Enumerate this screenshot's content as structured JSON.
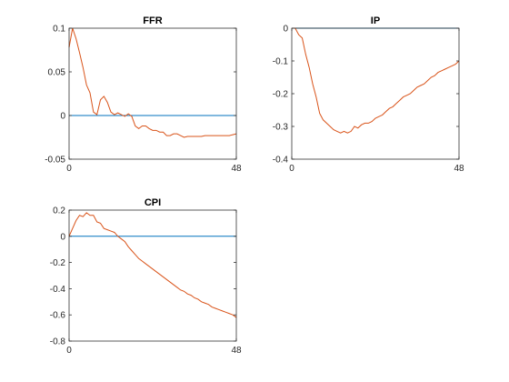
{
  "colors": {
    "response": "#d95319",
    "zero": "#0072bd",
    "axis": "#262626"
  },
  "chart_data": [
    {
      "type": "line",
      "title": "FFR",
      "xlim": [
        0,
        48
      ],
      "ylim": [
        -0.05,
        0.1
      ],
      "xticks": [
        0,
        48
      ],
      "xtick_labels": [
        "0",
        "48"
      ],
      "yticks": [
        -0.05,
        0,
        0.05,
        0.1
      ],
      "ytick_labels": [
        "-0.05",
        "0",
        "0.05",
        "0.1"
      ],
      "zero_line": 0,
      "x": [
        0,
        1,
        2,
        3,
        4,
        5,
        6,
        7,
        8,
        9,
        10,
        11,
        12,
        13,
        14,
        15,
        16,
        17,
        18,
        19,
        20,
        21,
        22,
        23,
        24,
        25,
        26,
        27,
        28,
        29,
        30,
        31,
        32,
        33,
        34,
        35,
        36,
        37,
        38,
        39,
        40,
        41,
        42,
        43,
        44,
        45,
        46,
        47,
        48
      ],
      "y": [
        0.078,
        0.1,
        0.088,
        0.072,
        0.055,
        0.035,
        0.026,
        0.004,
        0.001,
        0.018,
        0.022,
        0.015,
        0.004,
        0.001,
        0.003,
        0.001,
        -0.001,
        0.002,
        -0.001,
        -0.012,
        -0.015,
        -0.012,
        -0.012,
        -0.015,
        -0.017,
        -0.017,
        -0.019,
        -0.019,
        -0.023,
        -0.023,
        -0.021,
        -0.021,
        -0.023,
        -0.025,
        -0.024,
        -0.024,
        -0.024,
        -0.024,
        -0.024,
        -0.023,
        -0.023,
        -0.023,
        -0.023,
        -0.023,
        -0.023,
        -0.023,
        -0.023,
        -0.022,
        -0.021
      ]
    },
    {
      "type": "line",
      "title": "IP",
      "xlim": [
        0,
        48
      ],
      "ylim": [
        -0.4,
        0
      ],
      "xticks": [
        0,
        48
      ],
      "xtick_labels": [
        "0",
        "48"
      ],
      "yticks": [
        -0.4,
        -0.3,
        -0.2,
        -0.1,
        0
      ],
      "ytick_labels": [
        "-0.4",
        "-0.3",
        "-0.2",
        "-0.1",
        "0"
      ],
      "zero_line": 0,
      "x": [
        0,
        1,
        2,
        3,
        4,
        5,
        6,
        7,
        8,
        9,
        10,
        11,
        12,
        13,
        14,
        15,
        16,
        17,
        18,
        19,
        20,
        21,
        22,
        23,
        24,
        25,
        26,
        27,
        28,
        29,
        30,
        31,
        32,
        33,
        34,
        35,
        36,
        37,
        38,
        39,
        40,
        41,
        42,
        43,
        44,
        45,
        46,
        47,
        48
      ],
      "y": [
        0,
        0,
        -0.02,
        -0.03,
        -0.08,
        -0.12,
        -0.17,
        -0.21,
        -0.26,
        -0.28,
        -0.29,
        -0.3,
        -0.31,
        -0.315,
        -0.32,
        -0.315,
        -0.32,
        -0.315,
        -0.3,
        -0.305,
        -0.295,
        -0.29,
        -0.29,
        -0.285,
        -0.275,
        -0.27,
        -0.265,
        -0.255,
        -0.245,
        -0.24,
        -0.23,
        -0.22,
        -0.21,
        -0.205,
        -0.2,
        -0.19,
        -0.18,
        -0.175,
        -0.17,
        -0.16,
        -0.15,
        -0.145,
        -0.135,
        -0.13,
        -0.125,
        -0.12,
        -0.115,
        -0.11,
        -0.1
      ]
    },
    {
      "type": "line",
      "title": "CPI",
      "xlim": [
        0,
        48
      ],
      "ylim": [
        -0.8,
        0.2
      ],
      "xticks": [
        0,
        48
      ],
      "xtick_labels": [
        "0",
        "48"
      ],
      "yticks": [
        -0.8,
        -0.6,
        -0.4,
        -0.2,
        0,
        0.2
      ],
      "ytick_labels": [
        "-0.8",
        "-0.6",
        "-0.4",
        "-0.2",
        "0",
        "0.2"
      ],
      "zero_line": 0,
      "x": [
        0,
        1,
        2,
        3,
        4,
        5,
        6,
        7,
        8,
        9,
        10,
        11,
        12,
        13,
        14,
        15,
        16,
        17,
        18,
        19,
        20,
        21,
        22,
        23,
        24,
        25,
        26,
        27,
        28,
        29,
        30,
        31,
        32,
        33,
        34,
        35,
        36,
        37,
        38,
        39,
        40,
        41,
        42,
        43,
        44,
        45,
        46,
        47,
        48
      ],
      "y": [
        0,
        0.06,
        0.12,
        0.16,
        0.15,
        0.18,
        0.16,
        0.16,
        0.11,
        0.1,
        0.06,
        0.05,
        0.04,
        0.03,
        0.0,
        -0.02,
        -0.04,
        -0.08,
        -0.11,
        -0.14,
        -0.17,
        -0.19,
        -0.21,
        -0.23,
        -0.25,
        -0.27,
        -0.29,
        -0.31,
        -0.33,
        -0.35,
        -0.37,
        -0.39,
        -0.41,
        -0.42,
        -0.44,
        -0.45,
        -0.47,
        -0.48,
        -0.5,
        -0.51,
        -0.52,
        -0.54,
        -0.55,
        -0.56,
        -0.57,
        -0.58,
        -0.59,
        -0.6,
        -0.62
      ]
    }
  ]
}
